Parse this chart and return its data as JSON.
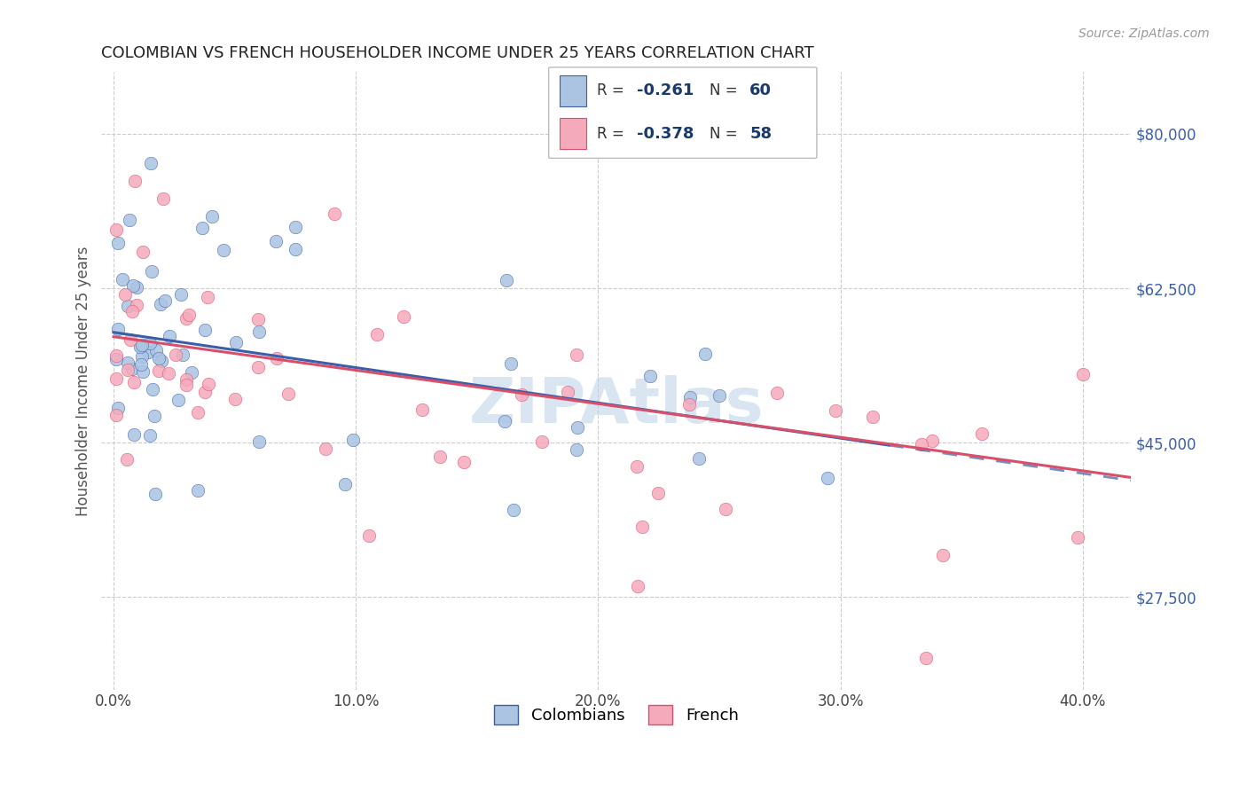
{
  "title": "COLOMBIAN VS FRENCH HOUSEHOLDER INCOME UNDER 25 YEARS CORRELATION CHART",
  "source": "Source: ZipAtlas.com",
  "xlabel_ticks": [
    "0.0%",
    "10.0%",
    "20.0%",
    "30.0%",
    "40.0%"
  ],
  "xlabel_tick_vals": [
    0.0,
    0.1,
    0.2,
    0.3,
    0.4
  ],
  "ylabel": "Householder Income Under 25 years",
  "ylabel_ticks": [
    "$27,500",
    "$45,000",
    "$62,500",
    "$80,000"
  ],
  "ylabel_tick_vals": [
    27500,
    45000,
    62500,
    80000
  ],
  "xlim": [
    -0.005,
    0.42
  ],
  "ylim": [
    17000,
    87000
  ],
  "colombian_R": -0.261,
  "colombian_N": 60,
  "french_R": -0.378,
  "french_N": 58,
  "colombian_color": "#aac4e2",
  "french_color": "#f5aabb",
  "colombian_line_color": "#3a5fa8",
  "french_line_color": "#d94f6a",
  "grid_color": "#cccccc",
  "title_color": "#222222",
  "source_color": "#999999",
  "legend_text_color": "#1a3a6b",
  "watermark_color": "#c0d4e8"
}
